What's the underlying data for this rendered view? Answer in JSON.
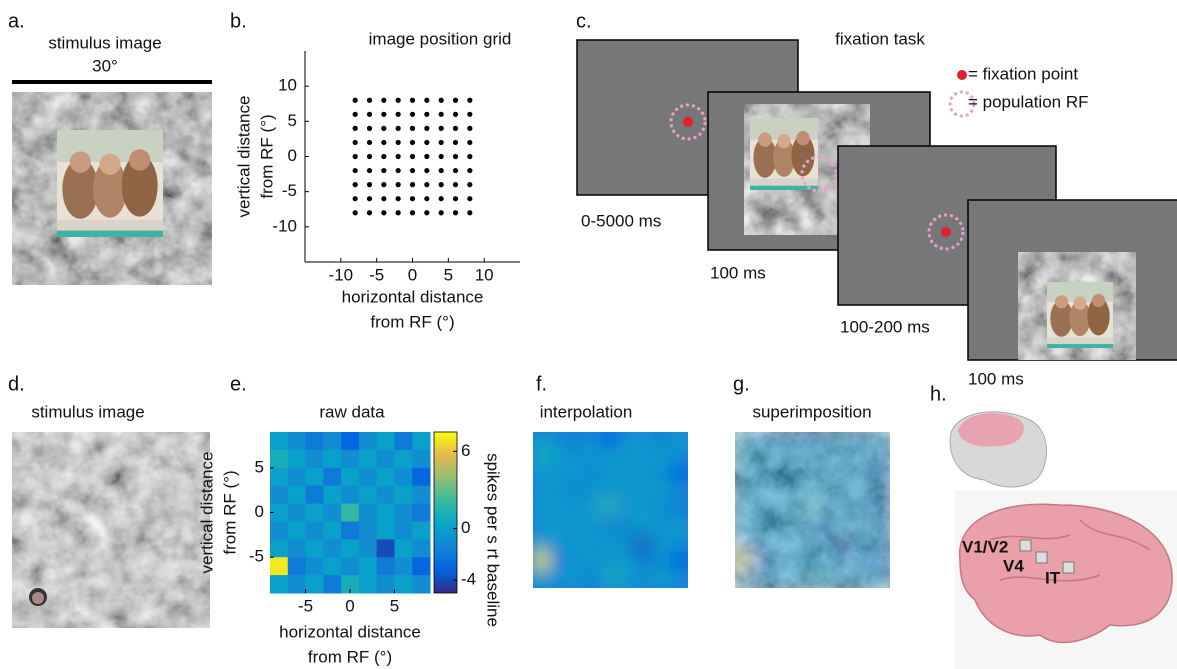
{
  "panels": {
    "a": {
      "label": "a.",
      "title": "stimulus image",
      "scale": "30°"
    },
    "c": {
      "label": "c.",
      "title": "fixation task",
      "legend": [
        "= fixation point",
        "= population RF"
      ],
      "durations": [
        "0-5000 ms",
        "100 ms",
        "100-200 ms",
        "100 ms"
      ]
    },
    "d": {
      "label": "d.",
      "title": "stimulus image"
    },
    "f": {
      "label": "f.",
      "title": "interpolation"
    },
    "g": {
      "label": "g.",
      "title": "superimposition"
    },
    "h": {
      "label": "h.",
      "areas": [
        {
          "name": "V1/V2",
          "color": "#e0302f"
        },
        {
          "name": "V4",
          "color": "#2a9a45"
        },
        {
          "name": "IT",
          "color": "#3a7cc4"
        }
      ]
    }
  },
  "chart_data": [
    {
      "type": "scatter",
      "label": "b.",
      "title": "image position grid",
      "color": "#000000",
      "x": [
        -8,
        -6,
        -4,
        -2,
        0,
        2,
        4,
        6,
        8,
        -8,
        -6,
        -4,
        -2,
        0,
        2,
        4,
        6,
        8,
        -8,
        -6,
        -4,
        -2,
        0,
        2,
        4,
        6,
        8,
        -8,
        -6,
        -4,
        -2,
        0,
        2,
        4,
        6,
        8,
        -8,
        -6,
        -4,
        -2,
        0,
        2,
        4,
        6,
        8,
        -8,
        -6,
        -4,
        -2,
        0,
        2,
        4,
        6,
        8,
        -8,
        -6,
        -4,
        -2,
        0,
        2,
        4,
        6,
        8,
        -8,
        -6,
        -4,
        -2,
        0,
        2,
        4,
        6,
        8,
        -8,
        -6,
        -4,
        -2,
        0,
        2,
        4,
        6,
        8
      ],
      "y": [
        8,
        8,
        8,
        8,
        8,
        8,
        8,
        8,
        8,
        6,
        6,
        6,
        6,
        6,
        6,
        6,
        6,
        6,
        4,
        4,
        4,
        4,
        4,
        4,
        4,
        4,
        4,
        2,
        2,
        2,
        2,
        2,
        2,
        2,
        2,
        2,
        0,
        0,
        0,
        0,
        0,
        0,
        0,
        0,
        0,
        -2,
        -2,
        -2,
        -2,
        -2,
        -2,
        -2,
        -2,
        -2,
        -4,
        -4,
        -4,
        -4,
        -4,
        -4,
        -4,
        -4,
        -4,
        -6,
        -6,
        -6,
        -6,
        -6,
        -6,
        -6,
        -6,
        -6,
        -8,
        -8,
        -8,
        -8,
        -8,
        -8,
        -8,
        -8,
        -8
      ],
      "xlim": [
        -15,
        15
      ],
      "ylim": [
        -15,
        15
      ],
      "xticks": [
        -10,
        -5,
        0,
        5,
        10
      ],
      "yticks": [
        10,
        5,
        0,
        -5,
        -10
      ],
      "xlabel": [
        "horizontal distance",
        "from RF (°)"
      ],
      "ylabel": [
        "vertical distance",
        "from RF (°)"
      ]
    },
    {
      "type": "heatmap",
      "label": "e.",
      "title": "raw data",
      "x": [
        -8,
        -6,
        -4,
        -2,
        0,
        2,
        4,
        6,
        8
      ],
      "y": [
        8,
        6,
        4,
        2,
        0,
        -2,
        -4,
        -6,
        -8
      ],
      "z": [
        [
          0,
          -1,
          -2,
          -1,
          -3,
          -1,
          0,
          -2,
          0
        ],
        [
          1,
          0,
          -1,
          0,
          -1,
          0,
          -1,
          0,
          -1
        ],
        [
          0,
          -1,
          0,
          -2,
          0,
          -1,
          0,
          -1,
          -3
        ],
        [
          -1,
          0,
          -2,
          0,
          -1,
          0,
          -1,
          0,
          -1
        ],
        [
          0,
          -1,
          0,
          -1,
          2,
          -1,
          0,
          -1,
          -2
        ],
        [
          -1,
          0,
          -1,
          0,
          -2,
          -1,
          0,
          -1,
          0
        ],
        [
          0,
          -1,
          0,
          -1,
          0,
          -1,
          -4,
          0,
          -1
        ],
        [
          7,
          -2,
          -1,
          0,
          -1,
          0,
          -2,
          -1,
          -3
        ],
        [
          0,
          -1,
          0,
          -2,
          1,
          0,
          -1,
          0,
          -1
        ]
      ],
      "xlim": [
        -9,
        9
      ],
      "ylim": [
        -9,
        9
      ],
      "xticks": [
        -5,
        0,
        5
      ],
      "yticks": [
        5,
        0,
        -5
      ],
      "xlabel": [
        "horizontal distance",
        "from RF (°)"
      ],
      "ylabel": [
        "vertical distance",
        "from RF (°)"
      ],
      "colorbar": {
        "label": "spikes per s rt baseline",
        "lim": [
          -5,
          7.5
        ],
        "ticks": [
          6,
          0,
          -4
        ]
      },
      "colormap": [
        "#352a87",
        "#0363e1",
        "#1485d4",
        "#06a7c6",
        "#38b99e",
        "#92bf73",
        "#e2b94d",
        "#f9fb0e"
      ]
    }
  ]
}
